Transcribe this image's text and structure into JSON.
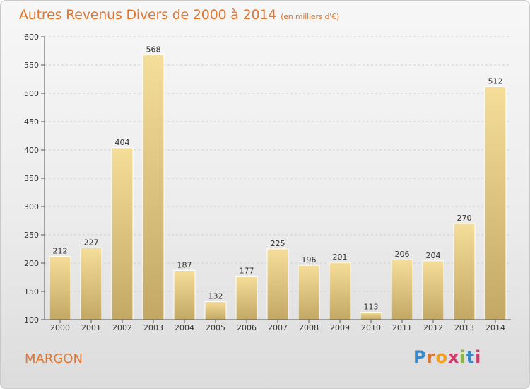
{
  "title": "Autres Revenus Divers de 2000 à 2014",
  "unit_label": "(en milliers d'€)",
  "place": "MARGON",
  "brand": {
    "letters": [
      "P",
      "r",
      "o",
      "x",
      "i",
      "t",
      "i"
    ],
    "colors": [
      "#3a88c8",
      "#e0762f",
      "#f0a020",
      "#d23a6a",
      "#8cb83a",
      "#3a88c8",
      "#d23a6a"
    ]
  },
  "colors": {
    "title": "#e0762f",
    "bar_light": "#f5dd9a",
    "bar_dark": "#c2a864"
  },
  "chart_data": {
    "type": "bar",
    "categories": [
      "2000",
      "2001",
      "2002",
      "2003",
      "2004",
      "2005",
      "2006",
      "2007",
      "2008",
      "2009",
      "2010",
      "2011",
      "2012",
      "2013",
      "2014"
    ],
    "values": [
      212,
      227,
      404,
      568,
      187,
      132,
      177,
      225,
      196,
      201,
      113,
      206,
      204,
      270,
      512
    ],
    "ylim": [
      100,
      600
    ],
    "yticks": [
      100,
      150,
      200,
      250,
      300,
      350,
      400,
      450,
      500,
      550,
      600
    ],
    "grid": true,
    "title": "Autres Revenus Divers de 2000 à 2014",
    "xlabel": "",
    "ylabel": ""
  }
}
